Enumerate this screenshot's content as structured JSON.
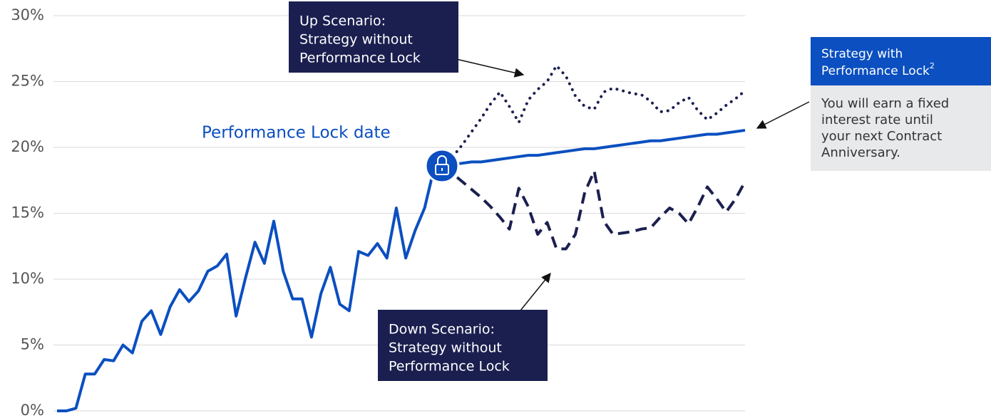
{
  "chart_data": {
    "type": "line",
    "categories": [
      null,
      null,
      null,
      null,
      null,
      null,
      null,
      null,
      null,
      null,
      null,
      null,
      null,
      null,
      null,
      null,
      null,
      null,
      null,
      null,
      null,
      null,
      null,
      null,
      null,
      null,
      null,
      null,
      null,
      null,
      null,
      null,
      null,
      null,
      null,
      null,
      null,
      null,
      null,
      null,
      null,
      null,
      null,
      null,
      null,
      null,
      null,
      null,
      null,
      null,
      null,
      null,
      null,
      null,
      null,
      null,
      null,
      null,
      null,
      null,
      null,
      null,
      null,
      null,
      null,
      null,
      null,
      null,
      null,
      null,
      null,
      null,
      null,
      null
    ],
    "series": [
      {
        "name": "Strategy with Performance Lock",
        "color": "#0b4fc0",
        "style": "solid",
        "values": [
          0,
          0,
          0.2,
          2.8,
          2.8,
          3.9,
          3.8,
          5.0,
          4.4,
          6.8,
          7.6,
          5.8,
          7.9,
          9.2,
          8.3,
          9.1,
          10.6,
          11.0,
          11.9,
          7.2,
          10.1,
          12.8,
          11.2,
          14.4,
          10.6,
          8.5,
          8.5,
          5.6,
          8.9,
          10.9,
          8.1,
          7.6,
          12.1,
          11.8,
          12.7,
          11.6,
          15.4,
          11.6,
          13.7,
          15.4,
          18.4,
          18.6,
          18.7,
          18.8,
          18.9,
          18.9,
          19.0,
          19.1,
          19.2,
          19.3,
          19.4,
          19.4,
          19.5,
          19.6,
          19.7,
          19.8,
          19.9,
          19.9,
          20.0,
          20.1,
          20.2,
          20.3,
          20.4,
          20.5,
          20.5,
          20.6,
          20.7,
          20.8,
          20.9,
          21.0,
          21.0,
          21.1,
          21.2,
          21.3
        ]
      },
      {
        "name": "Up Scenario: Strategy without Performance Lock",
        "color": "#1b1f4f",
        "style": "dotted",
        "values": [
          null,
          null,
          null,
          null,
          null,
          null,
          null,
          null,
          null,
          null,
          null,
          null,
          null,
          null,
          null,
          null,
          null,
          null,
          null,
          null,
          null,
          null,
          null,
          null,
          null,
          null,
          null,
          null,
          null,
          null,
          null,
          null,
          null,
          null,
          null,
          null,
          null,
          null,
          null,
          null,
          null,
          18.6,
          19.3,
          20.2,
          21.2,
          22.2,
          23.3,
          24.2,
          23.1,
          21.9,
          23.6,
          24.4,
          25.0,
          26.2,
          25.4,
          23.9,
          23.1,
          22.9,
          24.2,
          24.5,
          24.3,
          24.1,
          24.0,
          23.5,
          22.7,
          22.8,
          23.4,
          23.8,
          22.8,
          22.1,
          22.6,
          23.2,
          23.7,
          24.3
        ]
      },
      {
        "name": "Down Scenario: Strategy without Performance Lock",
        "color": "#1b1f4f",
        "style": "dashed",
        "values": [
          null,
          null,
          null,
          null,
          null,
          null,
          null,
          null,
          null,
          null,
          null,
          null,
          null,
          null,
          null,
          null,
          null,
          null,
          null,
          null,
          null,
          null,
          null,
          null,
          null,
          null,
          null,
          null,
          null,
          null,
          null,
          null,
          null,
          null,
          null,
          null,
          null,
          null,
          null,
          null,
          null,
          18.6,
          18.0,
          17.4,
          16.8,
          16.2,
          15.5,
          14.7,
          13.8,
          16.9,
          15.5,
          13.4,
          14.3,
          12.3,
          12.3,
          13.4,
          16.6,
          18.2,
          14.4,
          13.4,
          13.5,
          13.6,
          13.8,
          13.9,
          14.7,
          15.4,
          15.0,
          14.2,
          15.5,
          17.0,
          16.1,
          15.1,
          16.1,
          17.4
        ]
      }
    ],
    "ylim": [
      0,
      30
    ],
    "yticks": [
      {
        "value": 0,
        "label": "0%"
      },
      {
        "value": 5,
        "label": "5%"
      },
      {
        "value": 10,
        "label": "10%"
      },
      {
        "value": 15,
        "label": "15%"
      },
      {
        "value": 20,
        "label": "20%"
      },
      {
        "value": 25,
        "label": "25%"
      },
      {
        "value": 30,
        "label": "30%"
      }
    ],
    "grid": true,
    "annotations": {
      "lock_date": "Performance Lock date",
      "up": [
        "Up Scenario:",
        "Strategy without",
        "Performance Lock"
      ],
      "down": [
        "Down Scenario:",
        "Strategy without",
        "Performance Lock"
      ],
      "with_title": [
        "Strategy with",
        "Performance Lock"
      ],
      "with_sup": "2",
      "with_body": [
        "You will earn a fixed",
        "interest rate until",
        "your next Contract",
        "Anniversary."
      ]
    }
  }
}
